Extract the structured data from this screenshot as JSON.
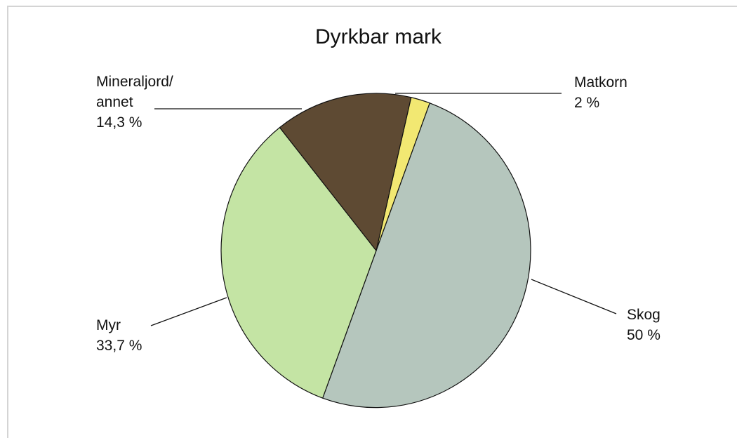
{
  "chart_data": {
    "type": "pie",
    "title": "Dyrkbar mark",
    "slices": [
      {
        "id": "matkorn",
        "label_lines": [
          "Matkorn"
        ],
        "value_text": "2 %",
        "value": 2,
        "color": "#f2e872"
      },
      {
        "id": "skog",
        "label_lines": [
          "Skog"
        ],
        "value_text": "50 %",
        "value": 50,
        "color": "#b5c6bd"
      },
      {
        "id": "myr",
        "label_lines": [
          "Myr"
        ],
        "value_text": "33,7 %",
        "value": 33.7,
        "color": "#c4e4a4"
      },
      {
        "id": "mineraljord",
        "label_lines": [
          "Mineraljord/",
          "annet"
        ],
        "value_text": "14,3 %",
        "value": 14.3,
        "color": "#5e4a33"
      }
    ]
  }
}
